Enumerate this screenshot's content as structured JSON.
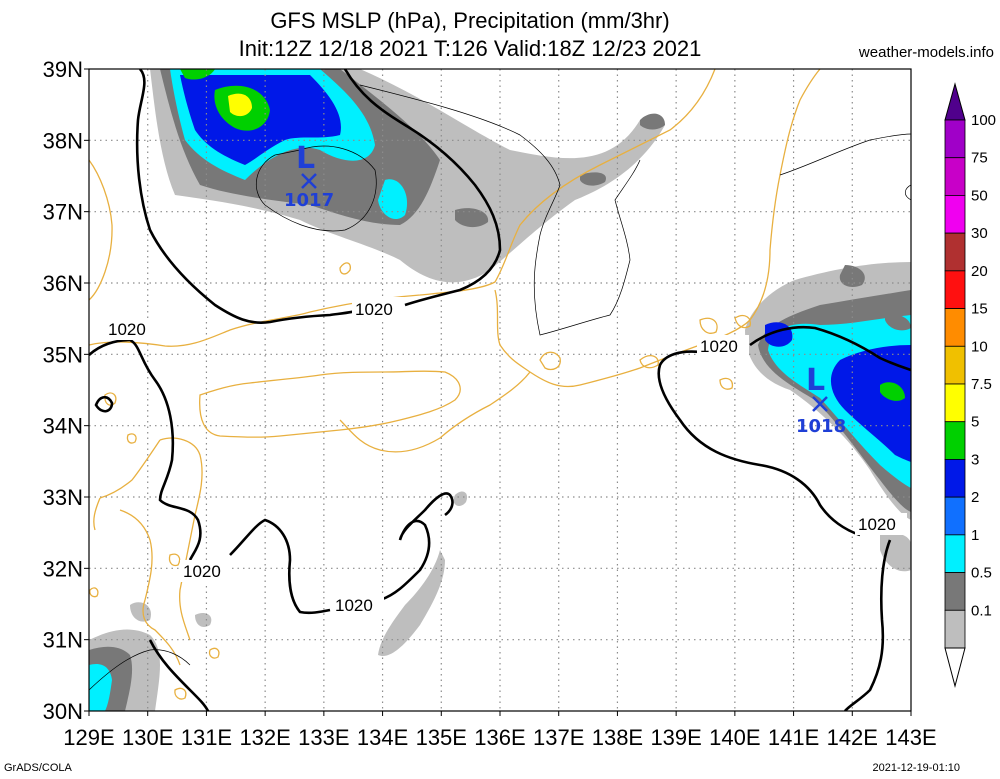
{
  "title_line1": "GFS MSLP (hPa), Precipitation (mm/3hr)",
  "title_line2": "Init:12Z 12/18 2021 T:126 Valid:18Z 12/23 2021",
  "source": "weather-models.info",
  "footer_left": "GrADS/COLA",
  "footer_right": "2021-12-19-01:10",
  "lon_labels": [
    "129E",
    "130E",
    "131E",
    "132E",
    "133E",
    "134E",
    "135E",
    "136E",
    "137E",
    "138E",
    "139E",
    "140E",
    "141E",
    "142E",
    "143E"
  ],
  "lat_labels": [
    "39N",
    "38N",
    "37N",
    "36N",
    "35N",
    "34N",
    "33N",
    "32N",
    "31N",
    "30N"
  ],
  "isobar_labels": [
    "1020",
    "1020",
    "1020",
    "1020",
    "1020",
    "1020"
  ],
  "lows": [
    {
      "symbol": "L",
      "value": "1017"
    },
    {
      "symbol": "L",
      "value": "1018"
    }
  ],
  "colorbar": {
    "labels": [
      "100",
      "75",
      "50",
      "30",
      "20",
      "15",
      "10",
      "7.5",
      "5",
      "3",
      "2",
      "1",
      "0.5",
      "0.1"
    ],
    "colors": [
      "#a000c8",
      "#c800c8",
      "#f000f0",
      "#b03030",
      "#ff1010",
      "#ff8c00",
      "#f0c000",
      "#ffff00",
      "#00d000",
      "#0018e8",
      "#1070ff",
      "#00f0ff",
      "#787878",
      "#bebebe"
    ],
    "top_color": "#50008c"
  },
  "colors": {
    "coast": "#e8b040",
    "isobar": "#000000",
    "grid": "#8c8c8c",
    "low_marker": "#1f3fd6"
  }
}
